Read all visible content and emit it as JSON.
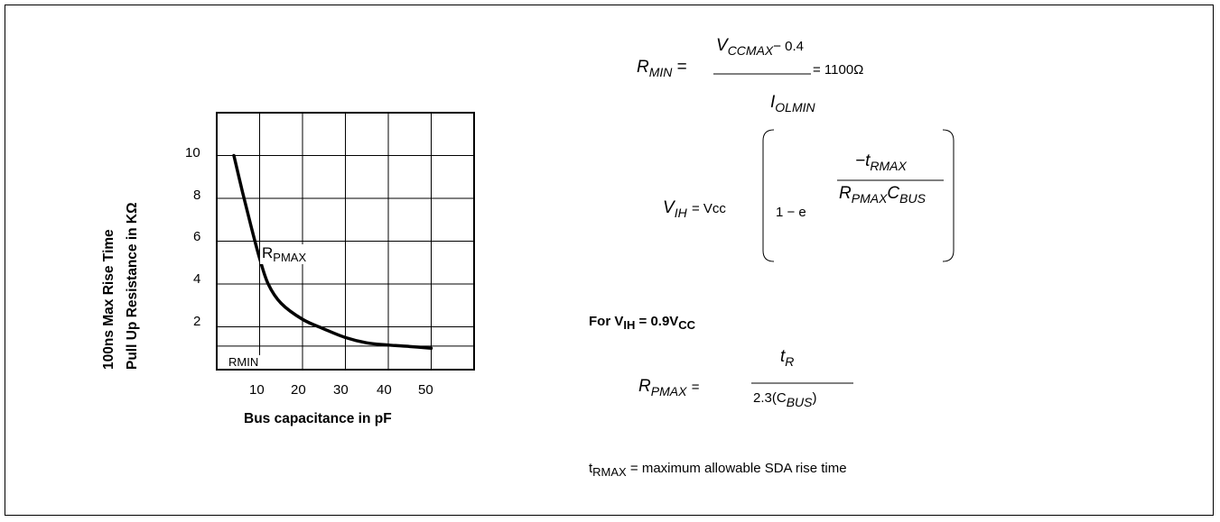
{
  "chart_data": {
    "type": "line",
    "xlabel": "Bus capacitance in pF",
    "ylabel_line1": "100ns Max Rise Time",
    "ylabel_line2": "Pull Up Resistance in KΩ",
    "x_ticks": [
      "10",
      "20",
      "30",
      "40",
      "50"
    ],
    "y_ticks": [
      "10",
      "8",
      "6",
      "4",
      "2"
    ],
    "xlim": [
      0,
      60
    ],
    "ylim": [
      0,
      12
    ],
    "grid": true,
    "series": [
      {
        "name": "RPMAX",
        "x": [
          4,
          6,
          8,
          10,
          12,
          15,
          20,
          25,
          30,
          35,
          40,
          45,
          50
        ],
        "y": [
          10,
          8.3,
          6.7,
          5.2,
          4.0,
          3.1,
          2.35,
          1.9,
          1.5,
          1.25,
          1.15,
          1.08,
          1.0
        ]
      }
    ],
    "label_rpmax_main": "R",
    "label_rpmax_sub": "PMAX",
    "label_rmin": "RMIN",
    "rmin_value": 1.1
  },
  "equations": {
    "rmin": {
      "lhs": "R",
      "lhs_sub": "MIN",
      "num": "V",
      "num_sub": "CCMAX",
      "num_tail": "− 0.4",
      "den": "I",
      "den_sub": "OLMIN",
      "result": "= 1100Ω"
    },
    "vih": {
      "lhs": "V",
      "lhs_sub": "IH",
      "eq": "= Vcc",
      "one_minus": "1 − e",
      "exp_num": "−t",
      "exp_num_sub": "RMAX",
      "exp_den_r": "R",
      "exp_den_r_sub": "PMAX",
      "exp_den_c": "C",
      "exp_den_c_sub": "BUS"
    },
    "for_text": "For  V",
    "for_sub1": "IH",
    "for_mid": " = 0.9V",
    "for_sub2": "CC",
    "rpmax": {
      "lhs": "R",
      "lhs_sub": "PMAX",
      "eq": "=",
      "num": "t",
      "num_sub": "R",
      "den": "2.3(C",
      "den_sub": "BUS",
      "den_tail": ")"
    },
    "note_main": "t",
    "note_sub": "RMAX",
    "note_text": " = maximum allowable SDA rise time"
  }
}
